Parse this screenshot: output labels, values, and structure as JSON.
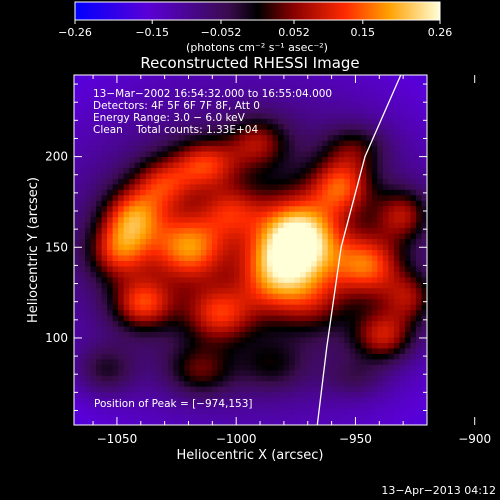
{
  "chart_data": {
    "type": "heatmap",
    "title": "Reconstructed RHESSI Image",
    "xlabel": "Heliocentric X (arcsec)",
    "ylabel": "Heliocentric Y (arcsec)",
    "xlim": [
      -1068,
      -920
    ],
    "ylim": [
      52,
      245
    ],
    "xticks": [
      {
        "value": -1050,
        "label": "−1050"
      },
      {
        "value": -1000,
        "label": "−1000"
      },
      {
        "value": -950,
        "label": "−950"
      },
      {
        "value": -900,
        "label": "−900"
      }
    ],
    "yticks": [
      {
        "value": 100,
        "label": "100"
      },
      {
        "value": 150,
        "label": "150"
      },
      {
        "value": 200,
        "label": "200"
      }
    ],
    "colorbar": {
      "range": [
        -0.26,
        0.26
      ],
      "ticks": [
        {
          "value": -0.26,
          "label": "−0.26"
        },
        {
          "value": -0.15,
          "label": "−0.15"
        },
        {
          "value": -0.052,
          "label": "−0.052"
        },
        {
          "value": 0.052,
          "label": "0.052"
        },
        {
          "value": 0.15,
          "label": "0.15"
        },
        {
          "value": 0.26,
          "label": "0.26"
        }
      ],
      "units_label": "(photons cm⁻² s⁻¹ asec⁻²)"
    },
    "annotations": [
      "13−Mar−2002 16:54:32.000 to 16:55:04.000",
      "Detectors: 4F 5F 6F 7F 8F, Att 0",
      "Energy Range: 3.0 − 6.0 keV",
      "Clean    Total counts: 1.33E+04"
    ],
    "peak_label": "Position of Peak = [−974,153]",
    "peak": {
      "x": -974,
      "y": 153,
      "value": 0.26
    },
    "limb": [
      {
        "x": -966,
        "y": 52
      },
      {
        "x": -962,
        "y": 95
      },
      {
        "x": -956,
        "y": 150
      },
      {
        "x": -946,
        "y": 200
      },
      {
        "x": -931,
        "y": 245
      }
    ],
    "background_value": -0.12,
    "sources": [
      {
        "x": -974,
        "y": 153,
        "amp": 0.34,
        "sx": 12,
        "sy": 16
      },
      {
        "x": -985,
        "y": 132,
        "amp": 0.14,
        "sx": 10,
        "sy": 14
      },
      {
        "x": -968,
        "y": 120,
        "amp": 0.1,
        "sx": 10,
        "sy": 12
      },
      {
        "x": -1043,
        "y": 167,
        "amp": 0.2,
        "sx": 9,
        "sy": 11
      },
      {
        "x": -1049,
        "y": 148,
        "amp": 0.18,
        "sx": 9,
        "sy": 11
      },
      {
        "x": -1039,
        "y": 119,
        "amp": 0.19,
        "sx": 9,
        "sy": 10
      },
      {
        "x": -1031,
        "y": 185,
        "amp": 0.15,
        "sx": 9,
        "sy": 10
      },
      {
        "x": -1020,
        "y": 150,
        "amp": 0.21,
        "sx": 11,
        "sy": 13
      },
      {
        "x": -1013,
        "y": 196,
        "amp": 0.18,
        "sx": 10,
        "sy": 10
      },
      {
        "x": -1007,
        "y": 113,
        "amp": 0.17,
        "sx": 10,
        "sy": 11
      },
      {
        "x": -1002,
        "y": 170,
        "amp": 0.12,
        "sx": 9,
        "sy": 10
      },
      {
        "x": -991,
        "y": 208,
        "amp": 0.14,
        "sx": 9,
        "sy": 10
      },
      {
        "x": -956,
        "y": 184,
        "amp": 0.19,
        "sx": 9,
        "sy": 11
      },
      {
        "x": -945,
        "y": 140,
        "amp": 0.2,
        "sx": 10,
        "sy": 12
      },
      {
        "x": -938,
        "y": 101,
        "amp": 0.18,
        "sx": 9,
        "sy": 10
      },
      {
        "x": -930,
        "y": 168,
        "amp": 0.15,
        "sx": 8,
        "sy": 10
      },
      {
        "x": -927,
        "y": 122,
        "amp": 0.14,
        "sx": 8,
        "sy": 10
      },
      {
        "x": -950,
        "y": 205,
        "amp": 0.1,
        "sx": 9,
        "sy": 9
      },
      {
        "x": -1055,
        "y": 82,
        "amp": 0.1,
        "sx": 9,
        "sy": 10
      },
      {
        "x": -1015,
        "y": 82,
        "amp": 0.12,
        "sx": 10,
        "sy": 10
      },
      {
        "x": -985,
        "y": 85,
        "amp": 0.08,
        "sx": 10,
        "sy": 10
      },
      {
        "x": -950,
        "y": 78,
        "amp": 0.06,
        "sx": 9,
        "sy": 8
      }
    ]
  },
  "footer": {
    "timestamp": "13−Apr−2013 04:12"
  }
}
